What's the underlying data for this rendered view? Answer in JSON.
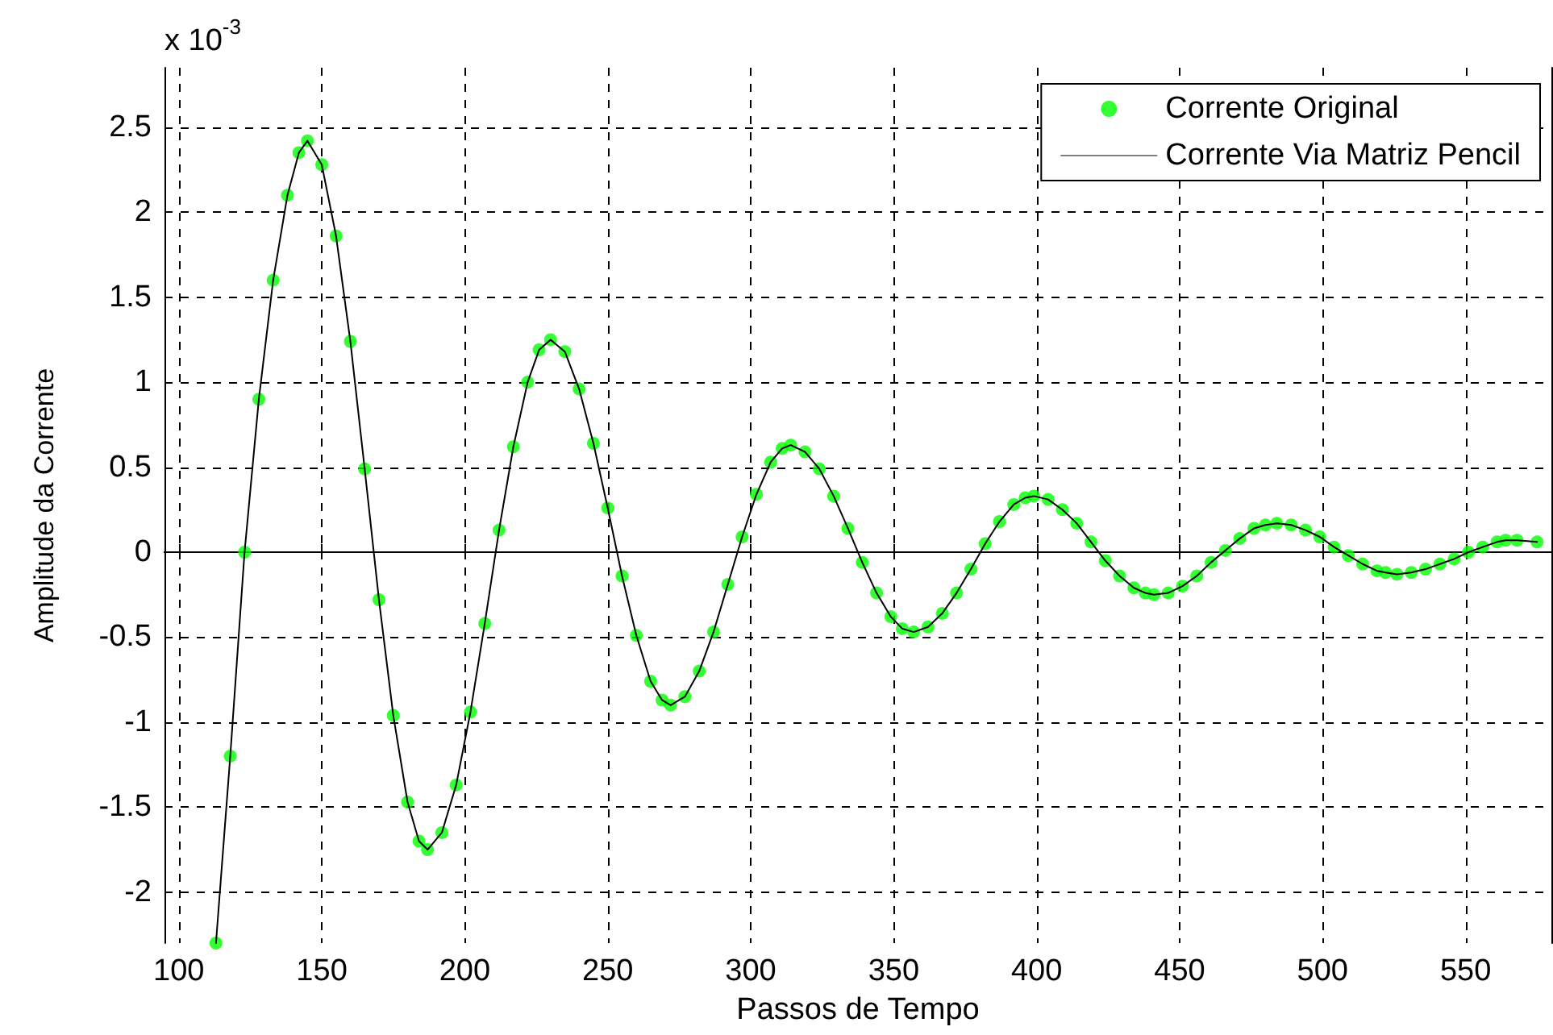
{
  "chart_data": {
    "type": "scatter",
    "xlabel": "Passos de Tempo",
    "ylabel": "Amplitude da Corrente",
    "annotations": [
      "x 10$^{-3}$"
    ],
    "x": [
      113,
      118,
      123,
      128,
      133,
      138,
      142,
      145,
      150,
      155,
      160,
      165,
      170,
      175,
      180,
      184,
      187,
      192,
      197,
      202,
      207,
      212,
      217,
      222,
      226,
      230,
      235,
      240,
      245,
      250,
      255,
      260,
      265,
      269,
      272,
      277,
      282,
      287,
      292,
      297,
      302,
      307,
      311,
      314,
      319,
      324,
      329,
      334,
      339,
      344,
      349,
      353,
      357,
      362,
      367,
      372,
      377,
      382,
      387,
      392,
      396,
      399,
      404,
      409,
      414,
      419,
      424,
      429,
      434,
      438,
      441,
      446,
      451,
      456,
      461,
      466,
      471,
      476,
      480,
      484,
      489,
      494,
      499,
      504,
      509,
      514,
      519,
      522,
      526,
      531,
      536,
      541,
      546,
      551,
      556,
      561,
      564,
      568,
      575
    ],
    "series": [
      {
        "name": "Corrente Original",
        "type": "scatter",
        "marker": "circle",
        "color": "#00ff00",
        "values": [
          -2.3,
          -1.2,
          0,
          0.9,
          1.6,
          2.1,
          2.35,
          2.42,
          2.28,
          1.86,
          1.24,
          0.49,
          -0.28,
          -0.96,
          -1.47,
          -1.7,
          -1.75,
          -1.65,
          -1.37,
          -0.94,
          -0.42,
          0.13,
          0.62,
          1.0,
          1.19,
          1.25,
          1.18,
          0.96,
          0.64,
          0.26,
          -0.14,
          -0.49,
          -0.76,
          -0.87,
          -0.9,
          -0.85,
          -0.7,
          -0.47,
          -0.19,
          0.09,
          0.34,
          0.53,
          0.61,
          0.63,
          0.59,
          0.49,
          0.33,
          0.14,
          -0.06,
          -0.24,
          -0.38,
          -0.45,
          -0.47,
          -0.44,
          -0.36,
          -0.24,
          -0.1,
          0.05,
          0.18,
          0.28,
          0.32,
          0.33,
          0.31,
          0.25,
          0.17,
          0.06,
          -0.05,
          -0.14,
          -0.21,
          -0.24,
          -0.25,
          -0.24,
          -0.2,
          -0.14,
          -0.06,
          0.01,
          0.08,
          0.14,
          0.16,
          0.17,
          0.16,
          0.13,
          0.09,
          0.03,
          -0.02,
          -0.07,
          -0.11,
          -0.12,
          -0.13,
          -0.12,
          -0.1,
          -0.07,
          -0.04,
          0,
          0.03,
          0.06,
          0.07,
          0.07,
          0.06
        ]
      },
      {
        "name": "Corrente Via Matriz Pencil",
        "type": "line",
        "marker": "none",
        "line_style": "solid",
        "color": "#000000",
        "values": [
          -2.3,
          -1.2,
          0,
          0.9,
          1.6,
          2.1,
          2.35,
          2.42,
          2.28,
          1.86,
          1.24,
          0.49,
          -0.28,
          -0.96,
          -1.47,
          -1.7,
          -1.75,
          -1.65,
          -1.37,
          -0.94,
          -0.42,
          0.13,
          0.62,
          1.0,
          1.19,
          1.25,
          1.18,
          0.96,
          0.64,
          0.26,
          -0.14,
          -0.49,
          -0.76,
          -0.87,
          -0.9,
          -0.85,
          -0.7,
          -0.47,
          -0.19,
          0.09,
          0.34,
          0.53,
          0.61,
          0.63,
          0.59,
          0.49,
          0.33,
          0.14,
          -0.06,
          -0.24,
          -0.38,
          -0.45,
          -0.47,
          -0.44,
          -0.36,
          -0.24,
          -0.1,
          0.05,
          0.18,
          0.28,
          0.32,
          0.33,
          0.31,
          0.25,
          0.17,
          0.06,
          -0.05,
          -0.14,
          -0.21,
          -0.24,
          -0.25,
          -0.24,
          -0.2,
          -0.14,
          -0.06,
          0.01,
          0.08,
          0.14,
          0.16,
          0.17,
          0.16,
          0.13,
          0.09,
          0.03,
          -0.02,
          -0.07,
          -0.11,
          -0.12,
          -0.13,
          -0.12,
          -0.1,
          -0.07,
          -0.04,
          0,
          0.03,
          0.06,
          0.07,
          0.07,
          0.06
        ]
      }
    ],
    "xlim": [
      95,
      580
    ],
    "xticks": [
      100,
      150,
      200,
      250,
      300,
      350,
      400,
      450,
      500,
      550
    ],
    "ylim": [
      -2.3,
      2.85
    ],
    "yticks": [
      -2,
      -1.5,
      -1,
      -0.5,
      0,
      0.5,
      1,
      1.5,
      2,
      2.5
    ],
    "grid": true,
    "legend": "top right"
  }
}
